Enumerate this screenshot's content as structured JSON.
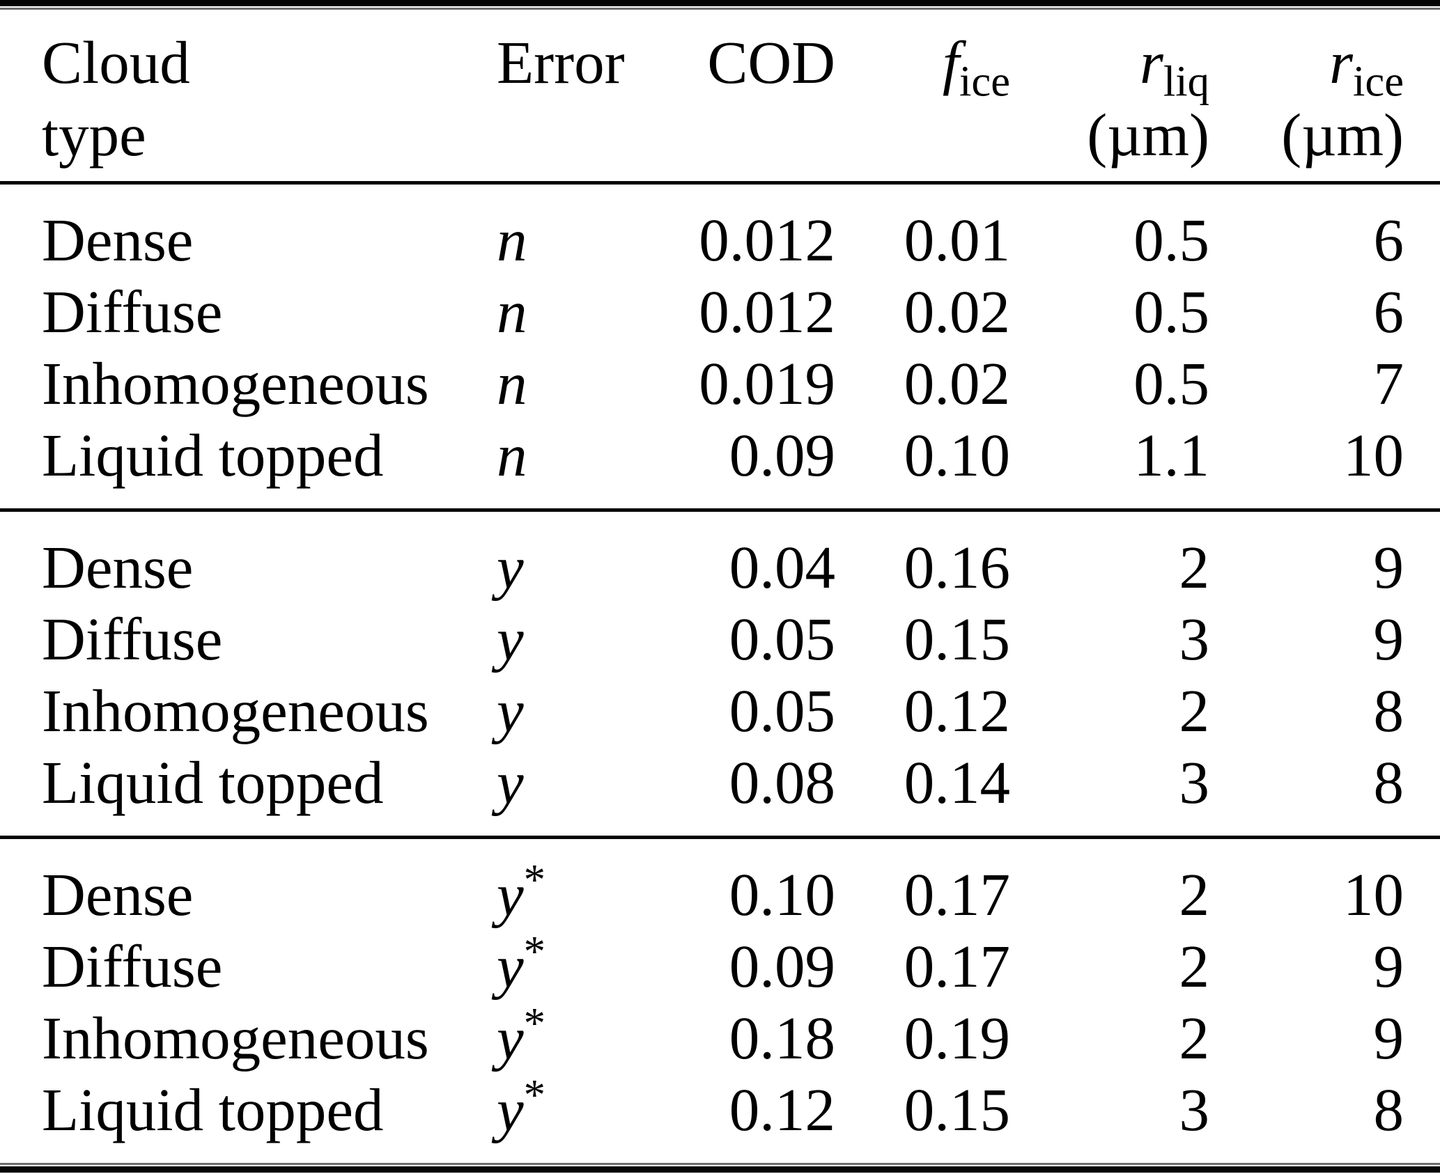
{
  "table": {
    "headers": {
      "cloud_type_line1": "Cloud",
      "cloud_type_line2": "type",
      "error": "Error",
      "cod": "COD",
      "f_ice": {
        "symbol": "f",
        "sub": "ice"
      },
      "r_liq": {
        "symbol": "r",
        "sub": "liq",
        "unit": "(µm)"
      },
      "r_ice": {
        "symbol": "r",
        "sub": "ice",
        "unit": "(µm)"
      }
    },
    "groups": [
      {
        "rows": [
          {
            "cloud_type": "Dense",
            "error_base": "n",
            "error_sup": "",
            "cod": "0.012",
            "f_ice": "0.01",
            "r_liq": "0.5",
            "r_ice": "6"
          },
          {
            "cloud_type": "Diffuse",
            "error_base": "n",
            "error_sup": "",
            "cod": "0.012",
            "f_ice": "0.02",
            "r_liq": "0.5",
            "r_ice": "6"
          },
          {
            "cloud_type": "Inhomogeneous",
            "error_base": "n",
            "error_sup": "",
            "cod": "0.019",
            "f_ice": "0.02",
            "r_liq": "0.5",
            "r_ice": "7"
          },
          {
            "cloud_type": "Liquid topped",
            "error_base": "n",
            "error_sup": "",
            "cod": "0.09",
            "f_ice": "0.10",
            "r_liq": "1.1",
            "r_ice": "10"
          }
        ]
      },
      {
        "rows": [
          {
            "cloud_type": "Dense",
            "error_base": "y",
            "error_sup": "",
            "cod": "0.04",
            "f_ice": "0.16",
            "r_liq": "2",
            "r_ice": "9"
          },
          {
            "cloud_type": "Diffuse",
            "error_base": "y",
            "error_sup": "",
            "cod": "0.05",
            "f_ice": "0.15",
            "r_liq": "3",
            "r_ice": "9"
          },
          {
            "cloud_type": "Inhomogeneous",
            "error_base": "y",
            "error_sup": "",
            "cod": "0.05",
            "f_ice": "0.12",
            "r_liq": "2",
            "r_ice": "8"
          },
          {
            "cloud_type": "Liquid topped",
            "error_base": "y",
            "error_sup": "",
            "cod": "0.08",
            "f_ice": "0.14",
            "r_liq": "3",
            "r_ice": "8"
          }
        ]
      },
      {
        "rows": [
          {
            "cloud_type": "Dense",
            "error_base": "y",
            "error_sup": "*",
            "cod": "0.10",
            "f_ice": "0.17",
            "r_liq": "2",
            "r_ice": "10"
          },
          {
            "cloud_type": "Diffuse",
            "error_base": "y",
            "error_sup": "*",
            "cod": "0.09",
            "f_ice": "0.17",
            "r_liq": "2",
            "r_ice": "9"
          },
          {
            "cloud_type": "Inhomogeneous",
            "error_base": "y",
            "error_sup": "*",
            "cod": "0.18",
            "f_ice": "0.19",
            "r_liq": "2",
            "r_ice": "9"
          },
          {
            "cloud_type": "Liquid topped",
            "error_base": "y",
            "error_sup": "*",
            "cod": "0.12",
            "f_ice": "0.15",
            "r_liq": "3",
            "r_ice": "8"
          }
        ]
      }
    ]
  }
}
